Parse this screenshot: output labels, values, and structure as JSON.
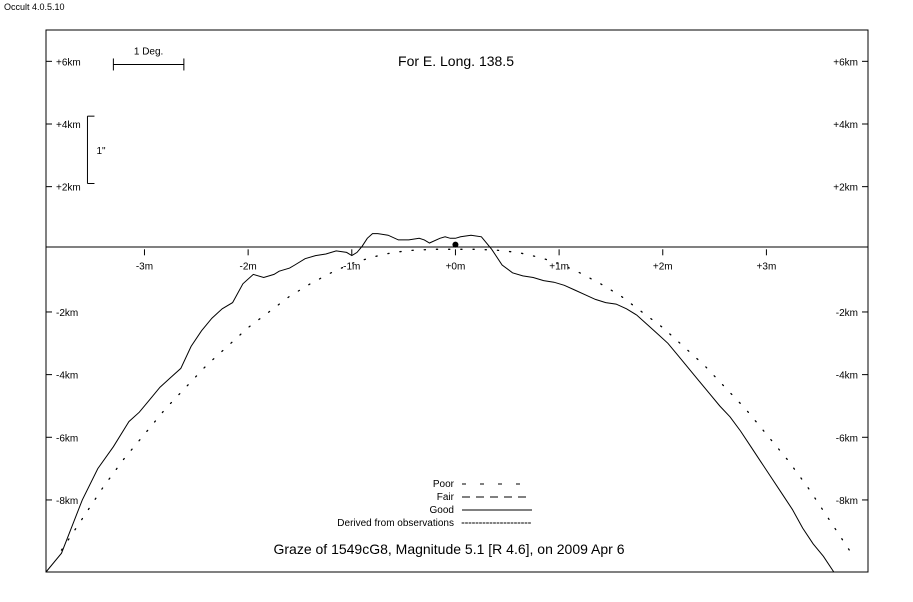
{
  "window": {
    "app_title": "Occult 4.0.5.10"
  },
  "chart_data": {
    "type": "line",
    "title": "For E. Long. 138.5",
    "caption": "Graze of  1549cG8,  Magnitude 5.1 [R 4.6],  on 2009 Apr  6",
    "xlim": [
      -3.95,
      3.98
    ],
    "ylim": [
      -10.3,
      7.0
    ],
    "x_ticks": [
      {
        "value": -3,
        "label": "-3m"
      },
      {
        "value": -2,
        "label": "-2m"
      },
      {
        "value": -1,
        "label": "-1m"
      },
      {
        "value": 0,
        "label": "+0m"
      },
      {
        "value": 1,
        "label": "+1m"
      },
      {
        "value": 2,
        "label": "+2m"
      },
      {
        "value": 3,
        "label": "+3m"
      }
    ],
    "y_ticks": [
      {
        "value": 6,
        "label": "+6km"
      },
      {
        "value": 4,
        "label": "+4km"
      },
      {
        "value": 2,
        "label": "+2km"
      },
      {
        "value": -2,
        "label": "-2km"
      },
      {
        "value": -4,
        "label": "-4km"
      },
      {
        "value": -6,
        "label": "-6km"
      },
      {
        "value": -8,
        "label": "-8km"
      }
    ],
    "scale_bar_deg": {
      "label": "1 Deg.",
      "x_from": -3.3,
      "x_to": -2.62,
      "y": 5.9
    },
    "scale_bar_arcsec": {
      "label": "1\"",
      "x": -3.55,
      "y_from": 4.25,
      "y_to": 2.1
    },
    "observer_point": {
      "x": 0.0,
      "y": 0.15
    },
    "legend": {
      "position": "bottom-center",
      "items": [
        {
          "label": "Poor",
          "style": "poor"
        },
        {
          "label": "Fair",
          "style": "fair"
        },
        {
          "label": "Good",
          "style": "good"
        },
        {
          "label": "Derived from observations",
          "style": "derived"
        }
      ]
    },
    "series": [
      {
        "style": "good",
        "x": [
          -3.95,
          -3.8,
          -3.6,
          -3.45,
          -3.3,
          -3.15,
          -3.05,
          -2.95,
          -2.85,
          -2.75,
          -2.65,
          -2.55,
          -2.45,
          -2.35,
          -2.25,
          -2.15,
          -2.05,
          -1.95,
          -1.85,
          -1.75,
          -1.7,
          -1.6,
          -1.55,
          -1.45,
          -1.35,
          -1.25,
          -1.15,
          -1.05,
          -1.0,
          -0.95,
          -0.9,
          -0.85,
          -0.8,
          -0.75,
          -0.65,
          -0.55,
          -0.45,
          -0.35,
          -0.3,
          -0.25,
          -0.15,
          -0.1,
          -0.05,
          0.0,
          0.05,
          0.15,
          0.25,
          0.35,
          0.45,
          0.55,
          0.65,
          0.75,
          0.85,
          0.95,
          1.05,
          1.15,
          1.25,
          1.35,
          1.45,
          1.55,
          1.65,
          1.75,
          1.85,
          1.95,
          2.05,
          2.15,
          2.25,
          2.35,
          2.45,
          2.55,
          2.65,
          2.75,
          2.85,
          2.95,
          3.05,
          3.15,
          3.25,
          3.35,
          3.45,
          3.55,
          3.65,
          3.75,
          3.8,
          3.88,
          3.98
        ],
        "y": [
          -10.3,
          -9.7,
          -8.0,
          -7.0,
          -6.3,
          -5.5,
          -5.2,
          -4.8,
          -4.4,
          -4.1,
          -3.8,
          -3.1,
          -2.6,
          -2.2,
          -1.9,
          -1.7,
          -1.1,
          -0.8,
          -0.9,
          -0.8,
          -0.7,
          -0.6,
          -0.5,
          -0.3,
          -0.2,
          -0.15,
          -0.05,
          -0.1,
          -0.2,
          -0.1,
          0.1,
          0.35,
          0.5,
          0.5,
          0.45,
          0.3,
          0.3,
          0.35,
          0.3,
          0.2,
          0.35,
          0.4,
          0.35,
          0.35,
          0.4,
          0.45,
          0.4,
          0.0,
          -0.5,
          -0.75,
          -0.85,
          -0.9,
          -1.0,
          -1.05,
          -1.15,
          -1.3,
          -1.45,
          -1.6,
          -1.7,
          -1.75,
          -1.9,
          -2.1,
          -2.4,
          -2.7,
          -3.0,
          -3.4,
          -3.8,
          -4.2,
          -4.6,
          -5.0,
          -5.35,
          -5.8,
          -6.3,
          -6.8,
          -7.3,
          -7.8,
          -8.3,
          -8.9,
          -9.4,
          -9.8,
          -10.3,
          -10.3,
          -10.3,
          -10.3,
          -10.3
        ],
        "x_note": ""
      },
      {
        "style": "derived",
        "x": [
          -3.8,
          -3.6,
          -3.4,
          -3.2,
          -3.0,
          -2.8,
          -2.6,
          -2.4,
          -2.2,
          -2.0,
          -1.8,
          -1.6,
          -1.4,
          -1.2,
          -1.0,
          -0.8,
          -0.6,
          -0.4,
          -0.2,
          0.0,
          0.2,
          0.4,
          0.6,
          0.8,
          1.0,
          1.2,
          1.4,
          1.6,
          1.8,
          2.0,
          2.2,
          2.4,
          2.6,
          2.8,
          3.0,
          3.2,
          3.4,
          3.6,
          3.8
        ],
        "y": [
          -9.6,
          -8.6,
          -7.6,
          -6.7,
          -5.9,
          -5.1,
          -4.4,
          -3.7,
          -3.1,
          -2.5,
          -2.0,
          -1.5,
          -1.1,
          -0.75,
          -0.45,
          -0.25,
          -0.1,
          -0.03,
          0.0,
          0.0,
          0.0,
          -0.03,
          -0.1,
          -0.25,
          -0.45,
          -0.75,
          -1.1,
          -1.5,
          -2.0,
          -2.5,
          -3.1,
          -3.7,
          -4.4,
          -5.1,
          -5.9,
          -6.7,
          -7.6,
          -8.6,
          -9.6
        ]
      }
    ]
  }
}
